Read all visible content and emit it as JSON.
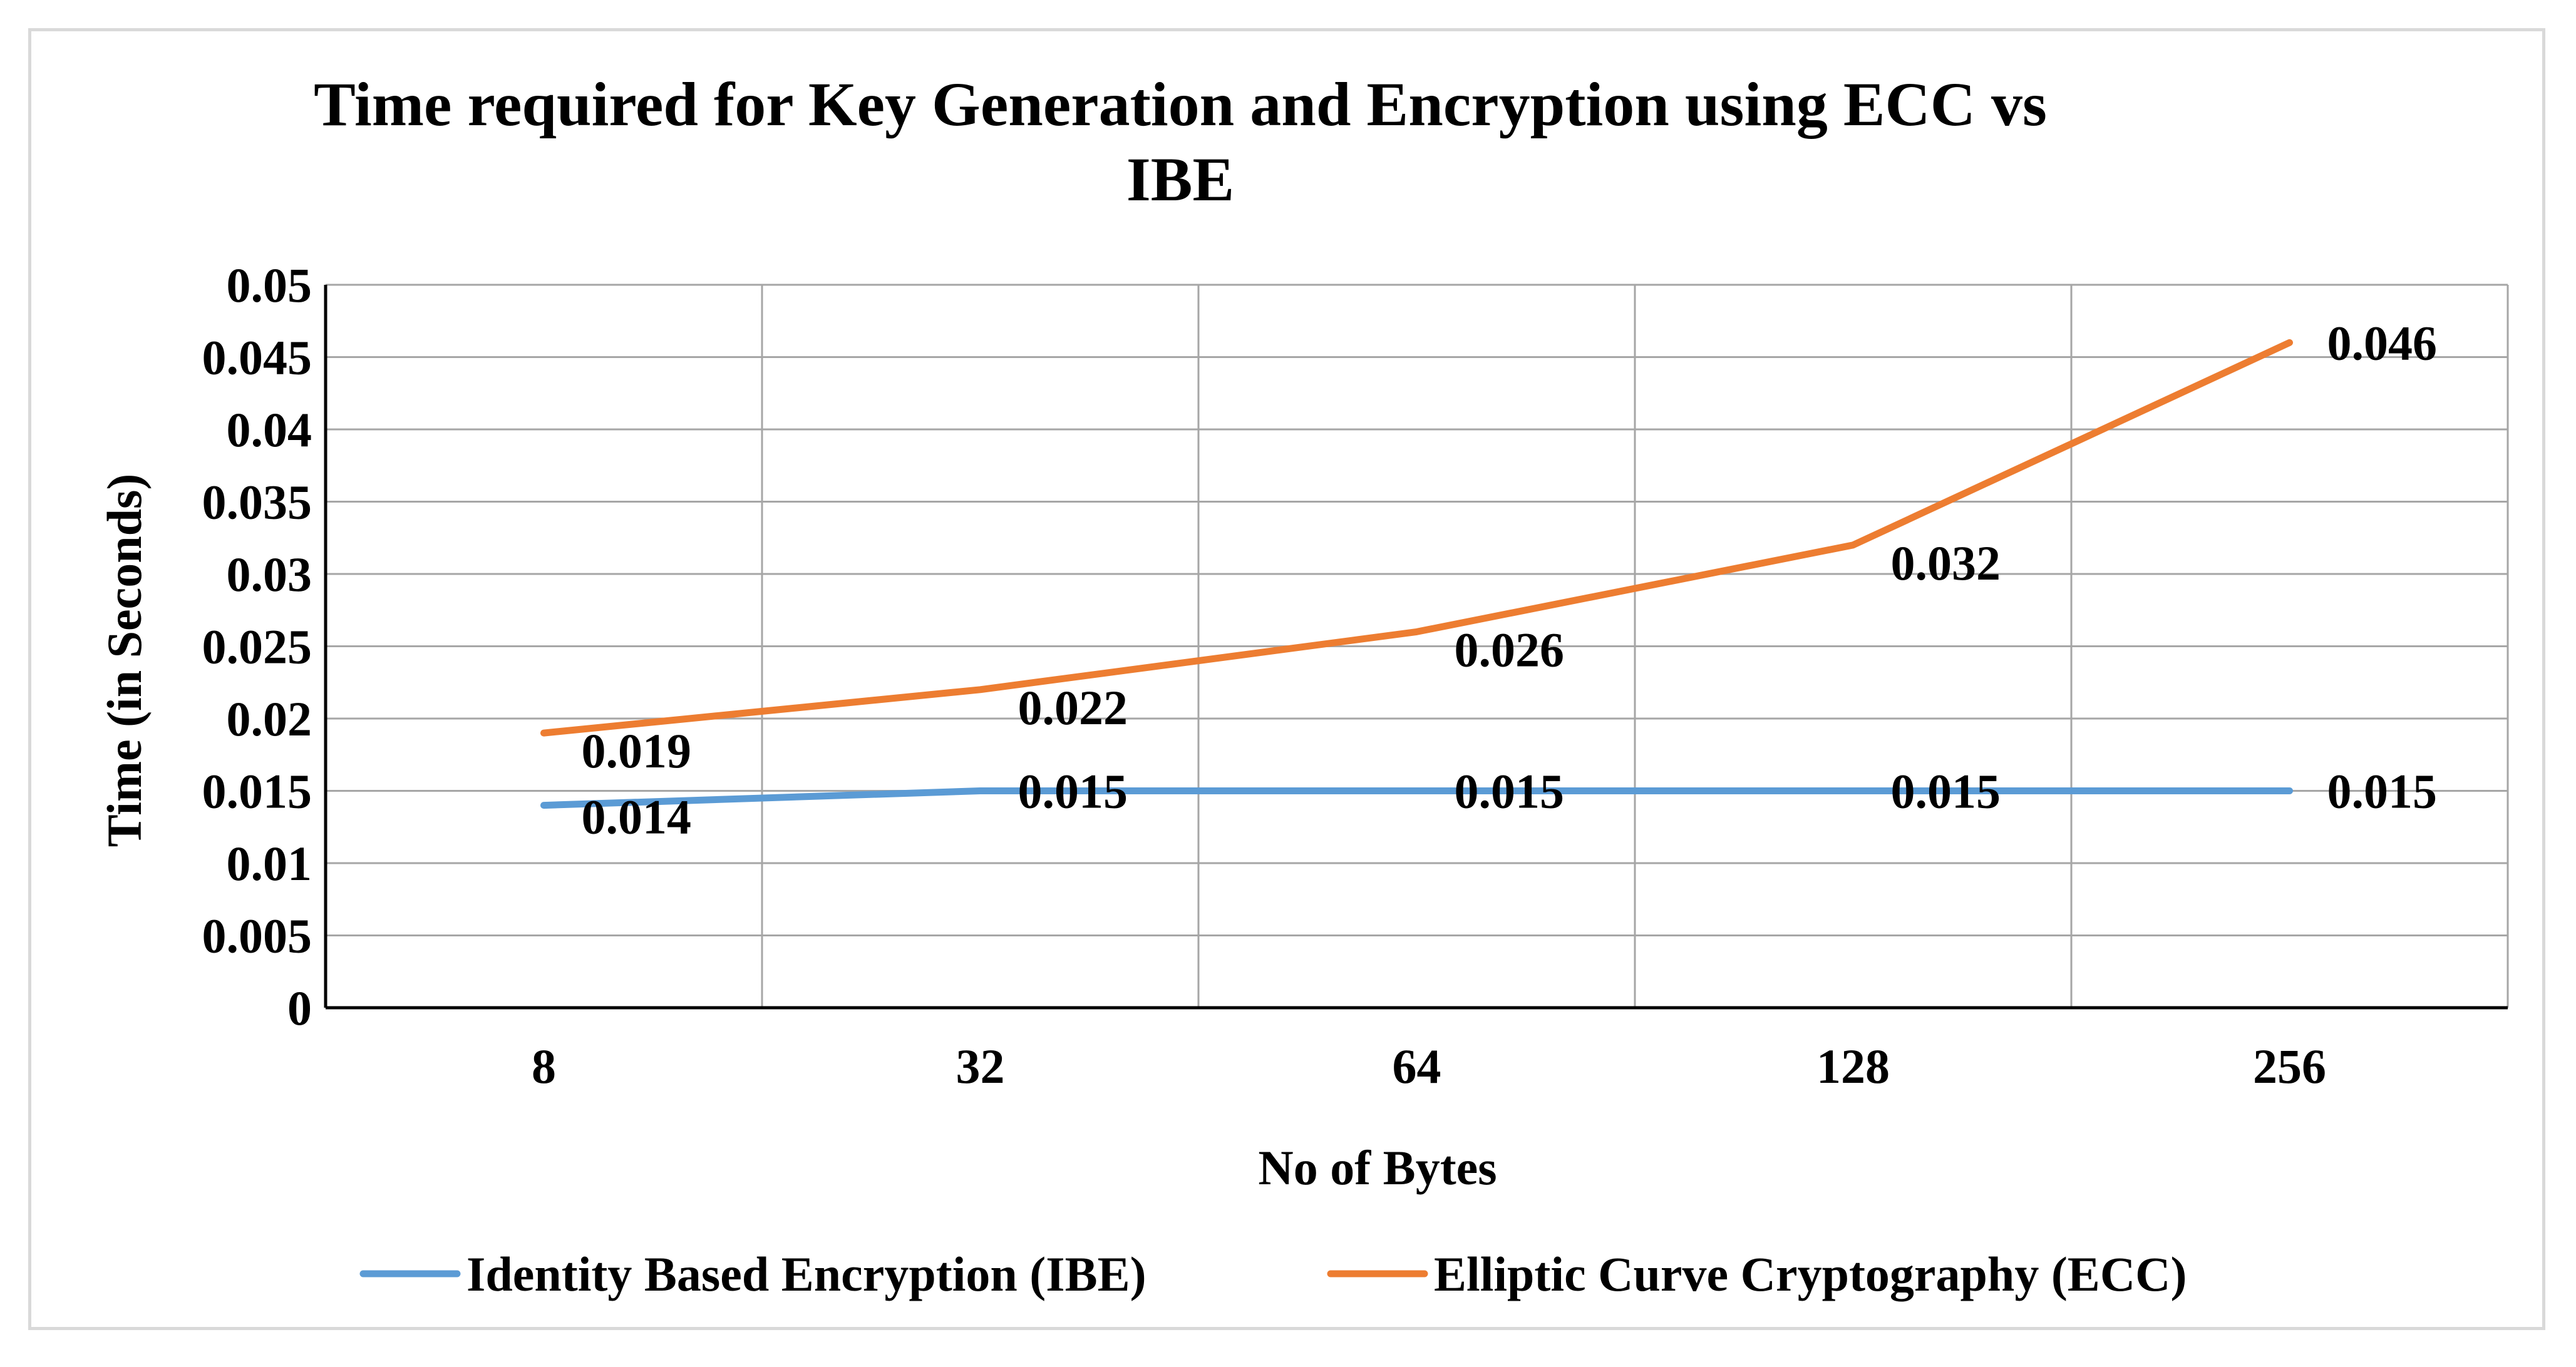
{
  "chart_data": {
    "type": "line",
    "title_lines": [
      "Time required for Key Generation and Encryption using ECC vs",
      "IBE"
    ],
    "xlabel": "No of Bytes",
    "ylabel": "Time (in Seconds)",
    "categories": [
      "8",
      "32",
      "64",
      "128",
      "256"
    ],
    "ylim": [
      0,
      0.05
    ],
    "yticks": [
      "0",
      "0.005",
      "0.01",
      "0.015",
      "0.02",
      "0.025",
      "0.03",
      "0.035",
      "0.04",
      "0.045",
      "0.05"
    ],
    "grid": true,
    "legend_position": "bottom",
    "series": [
      {
        "name": "Identity Based Encryption (IBE)",
        "color": "#5B9BD5",
        "values": [
          0.014,
          0.015,
          0.015,
          0.015,
          0.015
        ],
        "labels": [
          "0.014",
          "0.015",
          "0.015",
          "0.015",
          "0.015"
        ]
      },
      {
        "name": "Elliptic Curve Cryptography (ECC)",
        "color": "#ED7D31",
        "values": [
          0.019,
          0.022,
          0.026,
          0.032,
          0.046
        ],
        "labels": [
          "0.019",
          "0.022",
          "0.026",
          "0.032",
          "0.046"
        ]
      }
    ]
  }
}
